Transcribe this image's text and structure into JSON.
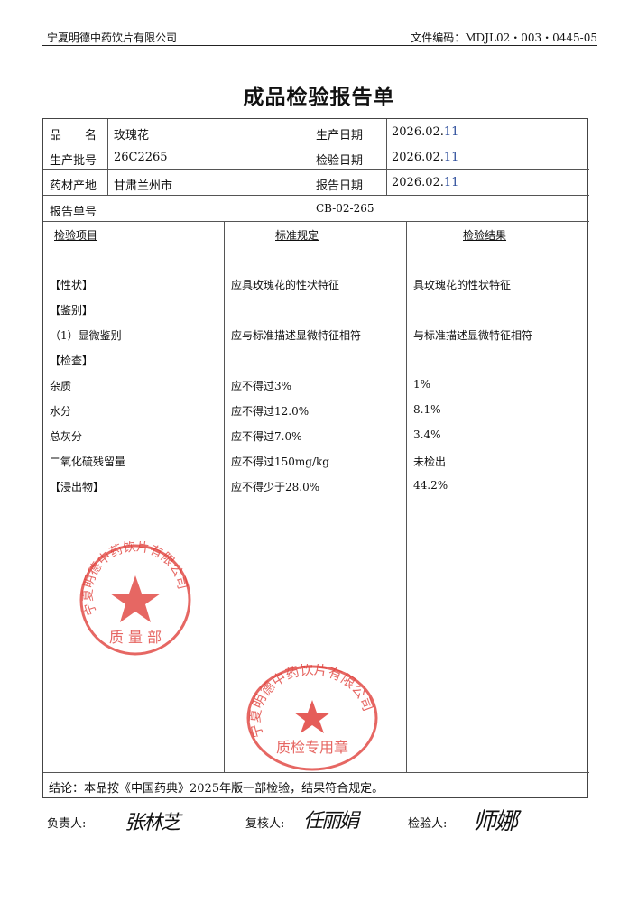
{
  "header": {
    "company": "宁夏明德中药饮片有限公司",
    "doc_no": "文件编码：MDJL02・003・0445-05"
  },
  "title": "成品检验报告单",
  "info": {
    "name_label": "品　　名",
    "name": "玫瑰花",
    "batch_label": "生产批号",
    "batch": "26C2265",
    "origin_label": "药材产地",
    "origin": "甘肃兰州市",
    "prod_date_label": "生产日期",
    "prod_date_main": "2026.02.",
    "prod_date_day": "11",
    "test_date_label": "检验日期",
    "test_date_main": "2026.02.",
    "test_date_day": "11",
    "report_date_label": "报告日期",
    "report_date_main": "2026.02.",
    "report_date_day": "11",
    "report_no_label": "报告单号",
    "report_no": "CB-02-265"
  },
  "columns": {
    "item": "检验项目",
    "standard": "标准规定",
    "result": "检验结果"
  },
  "rows": [
    {
      "item": "【性状】",
      "standard": "应具玫瑰花的性状特征",
      "result": "具玫瑰花的性状特征"
    },
    {
      "item": "【鉴别】",
      "standard": "",
      "result": ""
    },
    {
      "item": "（1）显微鉴别",
      "standard": "应与标准描述显微特征相符",
      "result": "与标准描述显微特征相符"
    },
    {
      "item": "【检查】",
      "standard": "",
      "result": ""
    },
    {
      "item": "杂质",
      "standard": "应不得过3%",
      "result": "1%"
    },
    {
      "item": "水分",
      "standard": "应不得过12.0%",
      "result": "8.1%"
    },
    {
      "item": "总灰分",
      "standard": "应不得过7.0%",
      "result": "3.4%"
    },
    {
      "item": "二氧化硫残留量",
      "standard": "应不得过150mg/kg",
      "result": "未检出"
    },
    {
      "item": "【浸出物】",
      "standard": "应不得少于28.0%",
      "result": "44.2%"
    }
  ],
  "conclusion": "结论：本品按《中国药典》2025年版一部检验，结果符合规定。",
  "signatures": {
    "responsible_label": "负责人:",
    "responsible": "张林芝",
    "reviewer_label": "复核人:",
    "reviewer": "任丽娟",
    "inspector_label": "检验人:",
    "inspector": "师娜"
  },
  "stamps": {
    "top": {
      "ring": "宁夏明德中药饮片有限公司",
      "center": "质 量 部"
    },
    "bottom": {
      "ring": "宁夏明德中药饮片有限公司",
      "center": "质检专用章"
    }
  },
  "stamp_color": "#e0413c"
}
